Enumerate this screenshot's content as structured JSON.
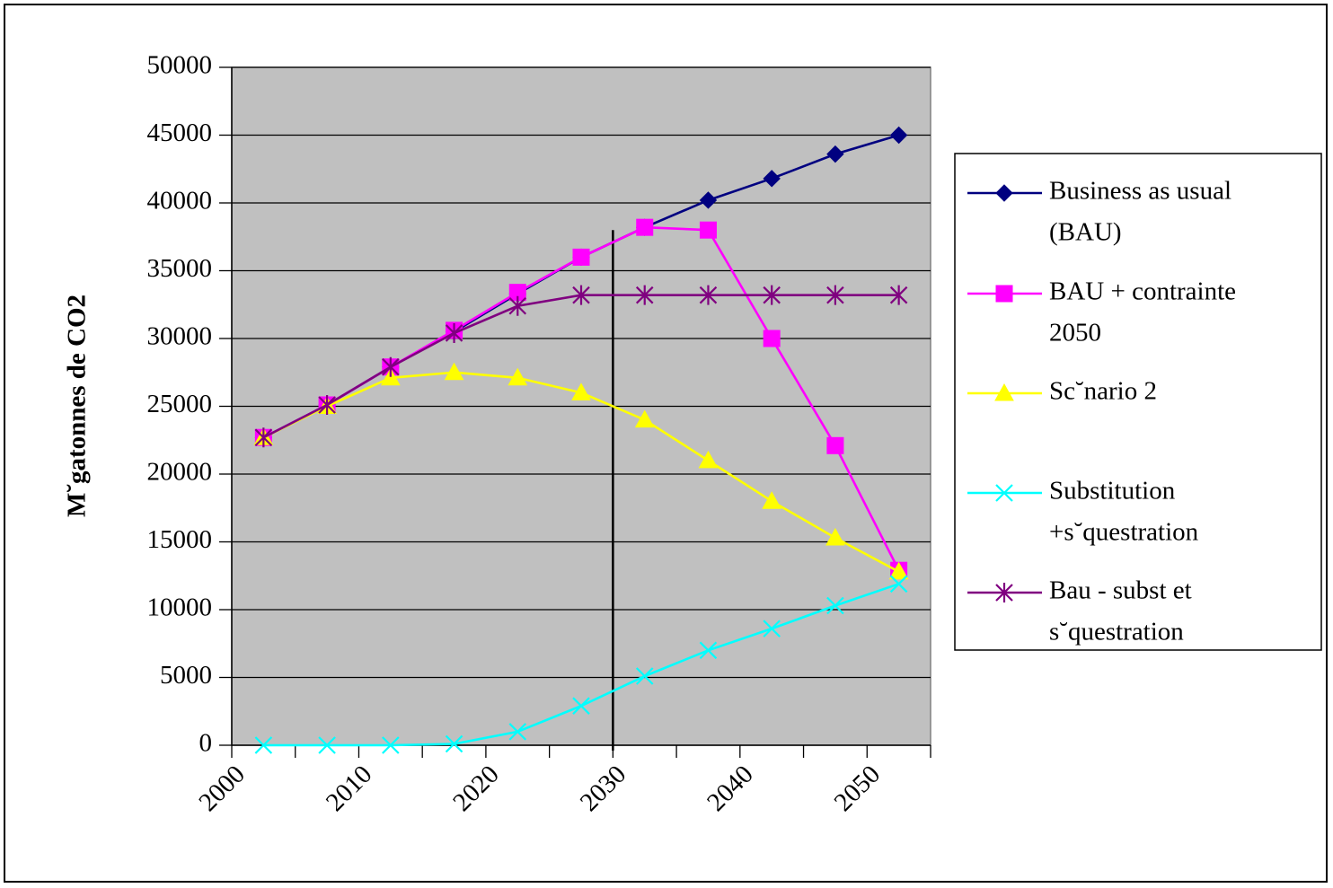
{
  "chart_data": {
    "type": "line",
    "title": "",
    "xlabel": "",
    "ylabel": "M˘gatonnes de CO2",
    "ylim": [
      0,
      50000
    ],
    "yticks": [
      "0",
      "5000",
      "10000",
      "15000",
      "20000",
      "25000",
      "30000",
      "35000",
      "40000",
      "45000",
      "50000"
    ],
    "xlim": [
      2000,
      2055
    ],
    "xticks": [
      "2000",
      "2010",
      "2020",
      "2030",
      "2040",
      "2050"
    ],
    "x": [
      2002.5,
      2007.5,
      2012.5,
      2017.5,
      2022.5,
      2027.5,
      2032.5,
      2037.5,
      2042.5,
      2047.5,
      2052.5
    ],
    "vertical_marker_x": 2030,
    "grid": true,
    "plot_background": "#c0c0c0",
    "legend_position": "right",
    "series": [
      {
        "name": "Business as usual (BAU)",
        "legend_lines": [
          "Business as usual",
          "(BAU)"
        ],
        "color": "#000080",
        "marker": "diamond",
        "values": [
          22700,
          25100,
          27900,
          30500,
          33300,
          36000,
          38200,
          40200,
          41800,
          43600,
          45000
        ]
      },
      {
        "name": "BAU + contrainte 2050",
        "legend_lines": [
          "BAU + contrainte",
          "2050"
        ],
        "color": "#ff00ff",
        "marker": "square",
        "values": [
          22700,
          25100,
          27900,
          30600,
          33400,
          36000,
          38200,
          38000,
          30000,
          22100,
          12900
        ]
      },
      {
        "name": "Sc˘nario 2",
        "legend_lines": [
          "Sc˘nario 2"
        ],
        "color": "#ffff00",
        "marker": "triangle",
        "values": [
          22700,
          25000,
          27100,
          27500,
          27100,
          26000,
          24000,
          21000,
          18000,
          15300,
          12800
        ]
      },
      {
        "name": "Substitution +s˘questration",
        "legend_lines": [
          "Substitution",
          "+s˘questration"
        ],
        "color": "#00ffff",
        "marker": "x",
        "values": [
          0,
          0,
          0,
          100,
          1000,
          2900,
          5100,
          7000,
          8600,
          10300,
          11900
        ]
      },
      {
        "name": "Bau - subst et s˘questration",
        "legend_lines": [
          "Bau - subst et",
          "s˘questration"
        ],
        "color": "#800080",
        "marker": "star",
        "values": [
          22700,
          25100,
          27900,
          30400,
          32400,
          33200,
          33200,
          33200,
          33200,
          33200,
          33200
        ]
      }
    ]
  }
}
